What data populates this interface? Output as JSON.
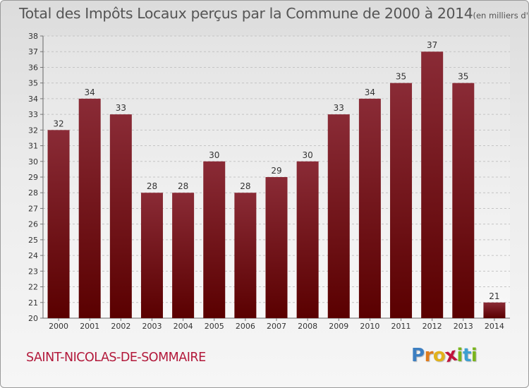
{
  "header": {
    "title": "Total des Impôts Locaux perçus par la Commune de 2000 à 2014",
    "unit": "(en milliers d'€)"
  },
  "footer": {
    "commune": "SAINT-NICOLAS-DE-SOMMAIRE",
    "logo_letters": [
      "P",
      "r",
      "o",
      "x",
      "i",
      "t",
      "i"
    ]
  },
  "colors": {
    "bar_top": "#8a2b36",
    "bar_bottom": "#5a0000",
    "commune": "#b2183a",
    "logo": [
      "#3d7fc1",
      "#e07c1c",
      "#e2b21a",
      "#c0143c",
      "#7ab51d",
      "#3d9fd1",
      "#7ab51d"
    ]
  },
  "chart_data": {
    "type": "bar",
    "title": "Total des Impôts Locaux perçus par la Commune de 2000 à 2014",
    "xlabel": "",
    "ylabel": "",
    "categories": [
      "2000",
      "2001",
      "2002",
      "2003",
      "2004",
      "2005",
      "2006",
      "2007",
      "2008",
      "2009",
      "2010",
      "2011",
      "2012",
      "2013",
      "2014"
    ],
    "values": [
      32,
      34,
      33,
      28,
      28,
      30,
      28,
      29,
      30,
      33,
      34,
      35,
      37,
      35,
      21
    ],
    "ylim": [
      20,
      38
    ],
    "yticks": [
      20,
      21,
      22,
      23,
      24,
      25,
      26,
      27,
      28,
      29,
      30,
      31,
      32,
      33,
      34,
      35,
      36,
      37,
      38
    ],
    "grid": true,
    "legend": "none"
  }
}
